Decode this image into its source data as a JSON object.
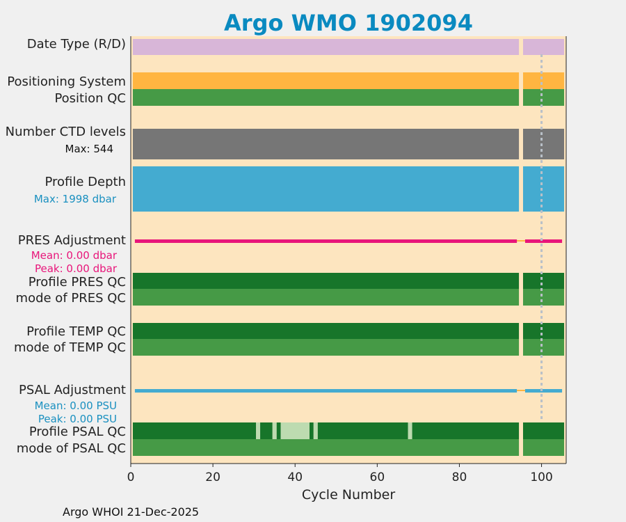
{
  "chart_data": {
    "type": "timeline",
    "title": "Argo WMO 1902094",
    "xlabel": "Cycle Number",
    "xlim": [
      0,
      106
    ],
    "xticks": [
      0,
      20,
      40,
      60,
      80,
      100
    ],
    "reference_line_x": 100,
    "footer": "Argo WHOI 21-Dec-2025",
    "rows": [
      {
        "id": "date-type",
        "label": "Date Type (R/D)",
        "color": "#d8b6d8",
        "style": "bar",
        "segments": [
          [
            0.5,
            94.5
          ],
          [
            95.5,
            105.5
          ]
        ]
      },
      {
        "id": "positioning-system",
        "label": "Positioning System",
        "color": "#ffb541",
        "style": "bar",
        "segments": [
          [
            0.5,
            94.5
          ],
          [
            95.5,
            105.5
          ]
        ]
      },
      {
        "id": "position-qc",
        "label": "Position QC",
        "color": "#469a46",
        "style": "bar",
        "segments": [
          [
            0.5,
            94.5
          ],
          [
            95.5,
            105.5
          ]
        ]
      },
      {
        "id": "number-ctd-levels",
        "label": "Number CTD levels",
        "sublabel": "Max: 544",
        "sublabel_color": "#111111",
        "color": "#767676",
        "style": "bar",
        "segments": [
          [
            0.5,
            94.5
          ],
          [
            95.5,
            105.5
          ]
        ]
      },
      {
        "id": "profile-depth",
        "label": "Profile Depth",
        "sublabel": "Max: 1998 dbar",
        "sublabel_color": "#1a90c0",
        "color": "#44abd0",
        "style": "bar",
        "segments": [
          [
            0.5,
            94.5
          ],
          [
            95.5,
            105.5
          ]
        ]
      },
      {
        "id": "pres-adjustment",
        "label": "PRES Adjustment",
        "sublabel": "Mean: 0.00 dbar",
        "sublabel2": "Peak: 0.00 dbar",
        "sublabel_color": "#e8157a",
        "color": "#e8157a",
        "style": "line",
        "segments": [
          [
            1,
            94
          ],
          [
            96,
            105
          ]
        ],
        "gap_color": "#ffb541",
        "gap": [
          94,
          96
        ]
      },
      {
        "id": "profile-pres-qc",
        "label": "Profile PRES QC",
        "color": "#17752a",
        "style": "bar",
        "segments": [
          [
            0.5,
            94.5
          ],
          [
            95.5,
            105.5
          ]
        ]
      },
      {
        "id": "mode-pres-qc",
        "label": "mode of PRES QC",
        "color": "#469a46",
        "style": "bar",
        "segments": [
          [
            0.5,
            94.5
          ],
          [
            95.5,
            105.5
          ]
        ]
      },
      {
        "id": "profile-temp-qc",
        "label": "Profile TEMP QC",
        "color": "#17752a",
        "style": "bar",
        "segments": [
          [
            0.5,
            94.5
          ],
          [
            95.5,
            105.5
          ]
        ]
      },
      {
        "id": "mode-temp-qc",
        "label": "mode of TEMP QC",
        "color": "#469a46",
        "style": "bar",
        "segments": [
          [
            0.5,
            94.5
          ],
          [
            95.5,
            105.5
          ]
        ]
      },
      {
        "id": "psal-adjustment",
        "label": "PSAL Adjustment",
        "sublabel": "Mean: 0.00 PSU",
        "sublabel2": "Peak: 0.00 PSU",
        "sublabel_color": "#1a90c0",
        "color": "#44abd0",
        "style": "line",
        "segments": [
          [
            1,
            94
          ],
          [
            96,
            105
          ]
        ],
        "gap_color": "#ffb541",
        "gap": [
          94,
          96
        ]
      },
      {
        "id": "profile-psal-qc",
        "label": "Profile PSAL QC",
        "color": "#17752a",
        "style": "bar",
        "segments": [
          [
            0.5,
            30.5
          ],
          [
            31.5,
            34.5
          ],
          [
            35.5,
            36.5
          ],
          [
            43.5,
            44.5
          ],
          [
            45.5,
            67.5
          ],
          [
            68.5,
            94.5
          ],
          [
            95.5,
            105.5
          ]
        ],
        "light_color": "#bddbb0",
        "light_segments": [
          [
            30.5,
            31.5
          ],
          [
            34.5,
            35.5
          ],
          [
            36.5,
            43.5
          ],
          [
            44.5,
            45.5
          ],
          [
            67.5,
            68.5
          ]
        ]
      },
      {
        "id": "mode-psal-qc",
        "label": "mode of PSAL QC",
        "color": "#469a46",
        "style": "bar",
        "segments": [
          [
            0.5,
            94.5
          ],
          [
            95.5,
            105.5
          ]
        ]
      }
    ]
  },
  "colors": {
    "background": "#f0f0f0",
    "plot_background": "#fde5bf",
    "reference_line": "#b9c0c8"
  }
}
